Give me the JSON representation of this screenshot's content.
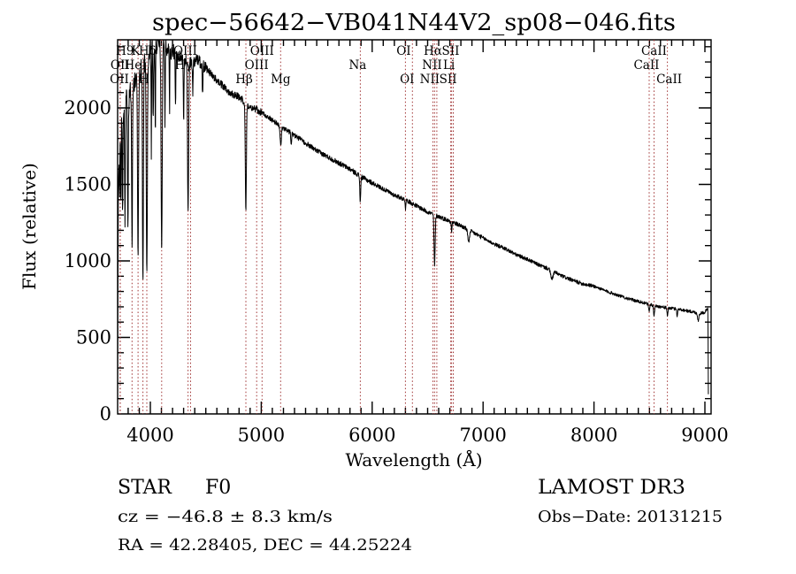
{
  "title": "spec−56642−VB041N44V2_sp08−046.fits",
  "annotations": {
    "class_label": "STAR",
    "subclass": "F0",
    "cz_line": "cz = −46.8 ± 8.3 km/s",
    "radec_line": "RA =  42.28405, DEC =  44.25224",
    "survey": "LAMOST DR3",
    "obsdate_line": "Obs−Date: 20131215",
    "cz_kms": -46.8,
    "cz_err_kms": 8.3,
    "ra_deg": 42.28405,
    "dec_deg": 44.25224,
    "obsdate": "20131215"
  },
  "colors": {
    "background": "#ffffff",
    "spectrum": "#000000",
    "axis": "#000000",
    "line_marker": "#a03333",
    "text": "#000000"
  },
  "chart_data": {
    "type": "line",
    "title": "spec−56642−VB041N44V2_sp08−046.fits",
    "xlabel": "Wavelength (Å)",
    "ylabel": "Flux (relative)",
    "xlim": [
      3705,
      9056
    ],
    "ylim": [
      0,
      2445
    ],
    "xticks": [
      4000,
      5000,
      6000,
      7000,
      8000,
      9000
    ],
    "yticks": [
      0,
      500,
      1000,
      1500,
      2000
    ],
    "x_minor_step": 100,
    "y_minor_step": 100,
    "grid": false,
    "legend": "none",
    "marker_wavelengths": [
      3727,
      3729,
      3835,
      3889,
      3933,
      3968,
      4102,
      4340,
      4363,
      4861,
      4959,
      5007,
      5175,
      5893,
      6300,
      6363,
      6548,
      6563,
      6583,
      6708,
      6716,
      6731,
      8498,
      8542,
      8662
    ],
    "line_label_rows": [
      {
        "row": 1,
        "labels": [
          {
            "text": "H9",
            "wl": 3835,
            "dx": -8
          },
          {
            "text": "K",
            "wl": 3933,
            "dx": -8
          },
          {
            "text": "Hδ",
            "wl": 4102,
            "dx": -16
          },
          {
            "text": "OIII",
            "wl": 4363,
            "dx": -6
          },
          {
            "text": "OIII",
            "wl": 5007,
            "dx": 0
          },
          {
            "text": "OI",
            "wl": 6300,
            "dx": -2
          },
          {
            "text": "Hα",
            "wl": 6563,
            "dx": -2
          },
          {
            "text": "SII",
            "wl": 6731,
            "dx": -3
          },
          {
            "text": "CaII",
            "wl": 8542,
            "dx": 0
          }
        ]
      },
      {
        "row": 2,
        "labels": [
          {
            "text": "OII",
            "wl": 3727,
            "dx": 0
          },
          {
            "text": "HeI",
            "wl": 3889,
            "dx": -3
          },
          {
            "text": "Hγ",
            "wl": 4340,
            "dx": -5
          },
          {
            "text": "OIII",
            "wl": 4959,
            "dx": 0
          },
          {
            "text": "Na",
            "wl": 5893,
            "dx": -3
          },
          {
            "text": "NII",
            "wl": 6548,
            "dx": -1
          },
          {
            "text": "Li",
            "wl": 6708,
            "dx": -2
          },
          {
            "text": "CaII",
            "wl": 8498,
            "dx": -3
          }
        ]
      },
      {
        "row": 3,
        "labels": [
          {
            "text": "OII",
            "wl": 3729,
            "dx": -1
          },
          {
            "text": "H",
            "wl": 3968,
            "dx": -3
          },
          {
            "text": "Hβ",
            "wl": 4861,
            "dx": -2
          },
          {
            "text": "Mg",
            "wl": 5175,
            "dx": 0
          },
          {
            "text": "OI",
            "wl": 6363,
            "dx": -6
          },
          {
            "text": "NII",
            "wl": 6583,
            "dx": -8
          },
          {
            "text": "SII",
            "wl": 6716,
            "dx": -4
          },
          {
            "text": "CaII",
            "wl": 8662,
            "dx": 2
          }
        ]
      }
    ],
    "continuum": [
      [
        3705,
        120
      ],
      [
        3708,
        1000
      ],
      [
        3712,
        1650
      ],
      [
        3720,
        1800
      ],
      [
        3740,
        1950
      ],
      [
        3760,
        2000
      ],
      [
        3800,
        2080
      ],
      [
        3850,
        2150
      ],
      [
        3900,
        2230
      ],
      [
        3950,
        2300
      ],
      [
        4000,
        2360
      ],
      [
        4050,
        2420
      ],
      [
        4100,
        2410
      ],
      [
        4150,
        2390
      ],
      [
        4200,
        2365
      ],
      [
        4250,
        2340
      ],
      [
        4300,
        2320
      ],
      [
        4360,
        2290
      ],
      [
        4420,
        2320
      ],
      [
        4500,
        2260
      ],
      [
        4600,
        2180
      ],
      [
        4700,
        2110
      ],
      [
        4800,
        2070
      ],
      [
        4900,
        2010
      ],
      [
        5000,
        1970
      ],
      [
        5100,
        1920
      ],
      [
        5200,
        1870
      ],
      [
        5300,
        1820
      ],
      [
        5400,
        1770
      ],
      [
        5500,
        1720
      ],
      [
        5600,
        1680
      ],
      [
        5700,
        1640
      ],
      [
        5800,
        1600
      ],
      [
        5900,
        1550
      ],
      [
        6000,
        1510
      ],
      [
        6100,
        1470
      ],
      [
        6200,
        1430
      ],
      [
        6300,
        1400
      ],
      [
        6400,
        1360
      ],
      [
        6500,
        1320
      ],
      [
        6600,
        1290
      ],
      [
        6700,
        1260
      ],
      [
        6800,
        1230
      ],
      [
        6900,
        1190
      ],
      [
        7000,
        1150
      ],
      [
        7100,
        1110
      ],
      [
        7200,
        1080
      ],
      [
        7300,
        1040
      ],
      [
        7400,
        1010
      ],
      [
        7500,
        975
      ],
      [
        7600,
        945
      ],
      [
        7700,
        905
      ],
      [
        7800,
        875
      ],
      [
        7900,
        850
      ],
      [
        8000,
        835
      ],
      [
        8100,
        805
      ],
      [
        8200,
        780
      ],
      [
        8300,
        755
      ],
      [
        8400,
        735
      ],
      [
        8500,
        715
      ],
      [
        8600,
        700
      ],
      [
        8700,
        690
      ],
      [
        8800,
        680
      ],
      [
        8900,
        665
      ],
      [
        8950,
        655
      ],
      [
        9000,
        665
      ],
      [
        9015,
        685
      ],
      [
        9028,
        690
      ],
      [
        9030,
        300
      ],
      [
        9032,
        0
      ]
    ],
    "absorption_lines": [
      {
        "wl": 3712,
        "flux": 1500,
        "width": 4
      },
      {
        "wl": 3722,
        "flux": 1400,
        "width": 4
      },
      {
        "wl": 3734,
        "flux": 1350,
        "width": 4
      },
      {
        "wl": 3750,
        "flux": 1300,
        "width": 4
      },
      {
        "wl": 3771,
        "flux": 1250,
        "width": 4.5
      },
      {
        "wl": 3798,
        "flux": 1200,
        "width": 5
      },
      {
        "wl": 3835,
        "flux": 1120,
        "width": 5.5
      },
      {
        "wl": 3889,
        "flux": 1000,
        "width": 6
      },
      {
        "wl": 3933,
        "flux": 870,
        "width": 6
      },
      {
        "wl": 3968,
        "flux": 910,
        "width": 7
      },
      {
        "wl": 4009,
        "flux": 1700,
        "width": 3
      },
      {
        "wl": 4026,
        "flux": 1900,
        "width": 4
      },
      {
        "wl": 4045,
        "flux": 1850,
        "width": 3
      },
      {
        "wl": 4102,
        "flux": 1060,
        "width": 7
      },
      {
        "wl": 4132,
        "flux": 1900,
        "width": 3
      },
      {
        "wl": 4173,
        "flux": 1950,
        "width": 3
      },
      {
        "wl": 4227,
        "flux": 2050,
        "width": 4
      },
      {
        "wl": 4300,
        "flux": 1900,
        "width": 4
      },
      {
        "wl": 4340,
        "flux": 1300,
        "width": 7
      },
      {
        "wl": 4383,
        "flux": 2100,
        "width": 4
      },
      {
        "wl": 4471,
        "flux": 2080,
        "width": 4
      },
      {
        "wl": 4861,
        "flux": 1330,
        "width": 7
      },
      {
        "wl": 5175,
        "flux": 1760,
        "width": 9
      },
      {
        "wl": 5270,
        "flux": 1750,
        "width": 5
      },
      {
        "wl": 5893,
        "flux": 1390,
        "width": 6
      },
      {
        "wl": 6300,
        "flux": 1340,
        "width": 4
      },
      {
        "wl": 6563,
        "flux": 970,
        "width": 7
      },
      {
        "wl": 6717,
        "flux": 1190,
        "width": 4
      },
      {
        "wl": 6870,
        "flux": 1130,
        "width": 12
      },
      {
        "wl": 7620,
        "flux": 880,
        "width": 14
      },
      {
        "wl": 8498,
        "flux": 660,
        "width": 5
      },
      {
        "wl": 8542,
        "flux": 640,
        "width": 6
      },
      {
        "wl": 8662,
        "flux": 640,
        "width": 6
      },
      {
        "wl": 8750,
        "flux": 640,
        "width": 5
      },
      {
        "wl": 8940,
        "flux": 610,
        "width": 8
      }
    ]
  }
}
